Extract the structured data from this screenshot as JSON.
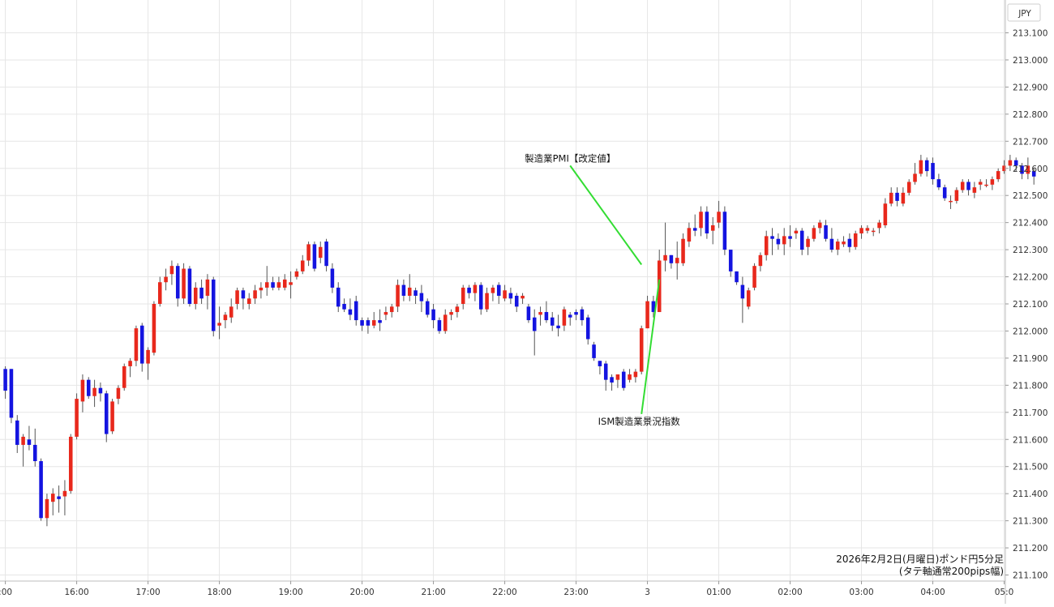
{
  "chart_data": {
    "type": "candlestick",
    "currency": "JPY",
    "caption_lines": [
      "2026年2月2日(月曜日)ポンド円5分足",
      "(タテ軸通常200pips幅)"
    ],
    "ylim": [
      211.1,
      213.1
    ],
    "y_ticks": [
      "213.100",
      "213.000",
      "212.900",
      "212.800",
      "212.700",
      "212.600",
      "212.500",
      "212.400",
      "212.300",
      "212.200",
      "212.100",
      "212.000",
      "211.900",
      "211.800",
      "211.700",
      "211.600",
      "211.500",
      "211.400",
      "211.300",
      "211.200",
      "211.100"
    ],
    "x_ticks": [
      {
        "label": ":00",
        "t": 0
      },
      {
        "label": "16:00",
        "t": 12
      },
      {
        "label": "17:00",
        "t": 24
      },
      {
        "label": "18:00",
        "t": 36
      },
      {
        "label": "19:00",
        "t": 48
      },
      {
        "label": "20:00",
        "t": 60
      },
      {
        "label": "21:00",
        "t": 72
      },
      {
        "label": "22:00",
        "t": 84
      },
      {
        "label": "23:00",
        "t": 96
      },
      {
        "label": "3",
        "t": 108
      },
      {
        "label": "01:00",
        "t": 120
      },
      {
        "label": "02:00",
        "t": 132
      },
      {
        "label": "03:00",
        "t": 144
      },
      {
        "label": "04:00",
        "t": 156
      },
      {
        "label": "05:0",
        "t": 168
      }
    ],
    "t_range": [
      -0.9,
      168.2
    ],
    "candles": [
      [
        211.86,
        211.87,
        211.75,
        211.78
      ],
      [
        211.86,
        211.86,
        211.66,
        211.68
      ],
      [
        211.67,
        211.69,
        211.55,
        211.58
      ],
      [
        211.58,
        211.62,
        211.5,
        211.61
      ],
      [
        211.6,
        211.65,
        211.56,
        211.58
      ],
      [
        211.58,
        211.64,
        211.5,
        211.52
      ],
      [
        211.52,
        211.53,
        211.3,
        211.31
      ],
      [
        211.31,
        211.4,
        211.28,
        211.38
      ],
      [
        211.37,
        211.42,
        211.32,
        211.4
      ],
      [
        211.39,
        211.43,
        211.33,
        211.38
      ],
      [
        211.39,
        211.45,
        211.32,
        211.41
      ],
      [
        211.41,
        211.62,
        211.4,
        211.61
      ],
      [
        211.61,
        211.77,
        211.6,
        211.75
      ],
      [
        211.74,
        211.84,
        211.7,
        211.82
      ],
      [
        211.82,
        211.83,
        211.75,
        211.76
      ],
      [
        211.76,
        211.82,
        211.72,
        211.79
      ],
      [
        211.79,
        211.81,
        211.74,
        211.77
      ],
      [
        211.77,
        211.78,
        211.59,
        211.62
      ],
      [
        211.63,
        211.75,
        211.62,
        211.74
      ],
      [
        211.75,
        211.8,
        211.73,
        211.79
      ],
      [
        211.79,
        211.88,
        211.78,
        211.87
      ],
      [
        211.87,
        211.9,
        211.83,
        211.89
      ],
      [
        211.89,
        212.02,
        211.87,
        212.01
      ],
      [
        212.02,
        212.03,
        211.85,
        211.88
      ],
      [
        211.88,
        211.94,
        211.82,
        211.93
      ],
      [
        211.92,
        212.11,
        211.91,
        212.1
      ],
      [
        212.1,
        212.2,
        212.09,
        212.18
      ],
      [
        212.18,
        212.23,
        212.15,
        212.2
      ],
      [
        212.21,
        212.26,
        212.17,
        212.24
      ],
      [
        212.24,
        212.25,
        212.09,
        212.12
      ],
      [
        212.12,
        212.25,
        212.1,
        212.23
      ],
      [
        212.23,
        212.24,
        212.09,
        212.1
      ],
      [
        212.1,
        212.18,
        212.08,
        212.16
      ],
      [
        212.16,
        212.19,
        212.1,
        212.12
      ],
      [
        212.13,
        212.21,
        212.08,
        212.19
      ],
      [
        212.19,
        212.2,
        211.98,
        212.0
      ],
      [
        212.02,
        212.09,
        211.97,
        212.03
      ],
      [
        212.04,
        212.07,
        212.01,
        212.06
      ],
      [
        212.05,
        212.12,
        212.03,
        212.09
      ],
      [
        212.1,
        212.16,
        212.08,
        212.15
      ],
      [
        212.15,
        212.16,
        212.08,
        212.12
      ],
      [
        212.1,
        212.14,
        212.08,
        212.12
      ],
      [
        212.12,
        212.17,
        212.1,
        212.15
      ],
      [
        212.15,
        212.18,
        212.12,
        212.16
      ],
      [
        212.16,
        212.24,
        212.13,
        212.18
      ],
      [
        212.18,
        212.2,
        212.15,
        212.16
      ],
      [
        212.16,
        212.2,
        212.15,
        212.18
      ],
      [
        212.16,
        212.21,
        212.15,
        212.19
      ],
      [
        212.17,
        212.22,
        212.12,
        212.18
      ],
      [
        212.2,
        212.23,
        212.19,
        212.22
      ],
      [
        212.22,
        212.28,
        212.21,
        212.26
      ],
      [
        212.26,
        212.33,
        212.24,
        212.32
      ],
      [
        212.32,
        212.33,
        212.22,
        212.23
      ],
      [
        212.27,
        212.33,
        212.25,
        212.31
      ],
      [
        212.33,
        212.34,
        212.22,
        212.24
      ],
      [
        212.23,
        212.25,
        212.14,
        212.16
      ],
      [
        212.16,
        212.18,
        212.07,
        212.09
      ],
      [
        212.1,
        212.12,
        212.07,
        212.08
      ],
      [
        212.08,
        212.12,
        212.04,
        212.06
      ],
      [
        212.11,
        212.13,
        212.02,
        212.04
      ],
      [
        212.04,
        212.05,
        212.0,
        212.02
      ],
      [
        212.04,
        212.05,
        211.99,
        212.02
      ],
      [
        212.02,
        212.07,
        212.01,
        212.04
      ],
      [
        212.04,
        212.08,
        212.0,
        212.03
      ],
      [
        212.06,
        212.09,
        212.04,
        212.07
      ],
      [
        212.07,
        212.1,
        212.05,
        212.09
      ],
      [
        212.09,
        212.19,
        212.07,
        212.17
      ],
      [
        212.17,
        212.19,
        212.11,
        212.13
      ],
      [
        212.13,
        212.21,
        212.11,
        212.16
      ],
      [
        212.15,
        212.16,
        212.1,
        212.13
      ],
      [
        212.14,
        212.17,
        212.07,
        212.11
      ],
      [
        212.11,
        212.12,
        212.05,
        212.06
      ],
      [
        212.08,
        212.1,
        212.01,
        212.04
      ],
      [
        212.04,
        212.05,
        211.99,
        212.0
      ],
      [
        212.0,
        212.08,
        211.99,
        212.06
      ],
      [
        212.06,
        212.08,
        212.04,
        212.07
      ],
      [
        212.07,
        212.1,
        212.05,
        212.09
      ],
      [
        212.1,
        212.17,
        212.08,
        212.16
      ],
      [
        212.16,
        212.17,
        212.12,
        212.14
      ],
      [
        212.14,
        212.18,
        212.11,
        212.17
      ],
      [
        212.17,
        212.18,
        212.06,
        212.08
      ],
      [
        212.08,
        212.16,
        212.07,
        212.14
      ],
      [
        212.14,
        212.17,
        212.11,
        212.16
      ],
      [
        212.17,
        212.18,
        212.1,
        212.13
      ],
      [
        212.12,
        212.17,
        212.11,
        212.15
      ],
      [
        212.14,
        212.16,
        212.1,
        212.12
      ],
      [
        212.13,
        212.14,
        212.07,
        212.09
      ],
      [
        212.12,
        212.14,
        212.1,
        212.13
      ],
      [
        212.09,
        212.1,
        212.03,
        212.04
      ],
      [
        212.05,
        212.08,
        211.91,
        212.0
      ],
      [
        212.06,
        212.09,
        212.02,
        212.07
      ],
      [
        212.07,
        212.11,
        212.03,
        212.04
      ],
      [
        212.05,
        212.07,
        212.0,
        212.02
      ],
      [
        212.02,
        212.06,
        211.98,
        212.01
      ],
      [
        212.02,
        212.09,
        212.0,
        212.08
      ],
      [
        212.06,
        212.07,
        212.02,
        212.05
      ],
      [
        212.07,
        212.08,
        212.04,
        212.06
      ],
      [
        212.08,
        212.09,
        212.02,
        212.04
      ],
      [
        212.05,
        212.06,
        211.95,
        211.97
      ],
      [
        211.95,
        211.96,
        211.89,
        211.9
      ],
      [
        211.89,
        211.89,
        211.84,
        211.87
      ],
      [
        211.88,
        211.89,
        211.78,
        211.82
      ],
      [
        211.83,
        211.84,
        211.78,
        211.81
      ],
      [
        211.82,
        211.84,
        211.79,
        211.84
      ],
      [
        211.85,
        211.86,
        211.78,
        211.79
      ],
      [
        211.82,
        211.86,
        211.81,
        211.84
      ],
      [
        211.83,
        211.86,
        211.81,
        211.85
      ],
      [
        211.85,
        212.02,
        211.84,
        212.01
      ],
      [
        212.01,
        212.13,
        212.01,
        212.11
      ],
      [
        212.11,
        212.13,
        212.05,
        212.07
      ],
      [
        212.07,
        212.3,
        212.07,
        212.26
      ],
      [
        212.26,
        212.4,
        212.22,
        212.28
      ],
      [
        212.28,
        212.28,
        212.23,
        212.25
      ],
      [
        212.25,
        212.33,
        212.19,
        212.27
      ],
      [
        212.25,
        212.36,
        212.24,
        212.34
      ],
      [
        212.33,
        212.4,
        212.31,
        212.38
      ],
      [
        212.38,
        212.43,
        212.35,
        212.37
      ],
      [
        212.38,
        212.46,
        212.35,
        212.44
      ],
      [
        212.44,
        212.46,
        212.34,
        212.36
      ],
      [
        212.37,
        212.42,
        212.32,
        212.39
      ],
      [
        212.4,
        212.48,
        212.38,
        212.44
      ],
      [
        212.44,
        212.46,
        212.28,
        212.3
      ],
      [
        212.3,
        212.3,
        212.2,
        212.22
      ],
      [
        212.22,
        212.22,
        212.17,
        212.18
      ],
      [
        212.17,
        212.2,
        212.03,
        212.12
      ],
      [
        212.09,
        212.16,
        212.08,
        212.15
      ],
      [
        212.16,
        212.25,
        212.15,
        212.24
      ],
      [
        212.24,
        212.29,
        212.22,
        212.28
      ],
      [
        212.28,
        212.37,
        212.26,
        212.35
      ],
      [
        212.35,
        212.38,
        212.28,
        212.34
      ],
      [
        212.34,
        212.36,
        212.3,
        212.32
      ],
      [
        212.32,
        212.38,
        212.28,
        212.35
      ],
      [
        212.35,
        212.39,
        212.31,
        212.34
      ],
      [
        212.36,
        212.38,
        212.34,
        212.37
      ],
      [
        212.37,
        212.38,
        212.28,
        212.3
      ],
      [
        212.31,
        212.35,
        212.28,
        212.34
      ],
      [
        212.34,
        212.39,
        212.33,
        212.38
      ],
      [
        212.38,
        212.41,
        212.36,
        212.4
      ],
      [
        212.39,
        212.41,
        212.33,
        212.34
      ],
      [
        212.34,
        212.38,
        212.29,
        212.3
      ],
      [
        212.3,
        212.34,
        212.28,
        212.33
      ],
      [
        212.32,
        212.35,
        212.31,
        212.33
      ],
      [
        212.34,
        212.36,
        212.29,
        212.31
      ],
      [
        212.31,
        212.37,
        212.3,
        212.36
      ],
      [
        212.36,
        212.39,
        212.34,
        212.38
      ],
      [
        212.37,
        212.39,
        212.36,
        212.38
      ],
      [
        212.37,
        212.38,
        212.35,
        212.37
      ],
      [
        212.38,
        212.41,
        212.36,
        212.4
      ],
      [
        212.39,
        212.49,
        212.38,
        212.47
      ],
      [
        212.47,
        212.53,
        212.46,
        212.51
      ],
      [
        212.51,
        212.53,
        212.46,
        212.48
      ],
      [
        212.47,
        212.53,
        212.46,
        212.51
      ],
      [
        212.51,
        212.56,
        212.5,
        212.55
      ],
      [
        212.55,
        212.62,
        212.54,
        212.58
      ],
      [
        212.58,
        212.65,
        212.57,
        212.63
      ],
      [
        212.63,
        212.64,
        212.57,
        212.59
      ],
      [
        212.62,
        212.64,
        212.54,
        212.56
      ],
      [
        212.56,
        212.58,
        212.52,
        212.53
      ],
      [
        212.53,
        212.54,
        212.48,
        212.49
      ],
      [
        212.48,
        212.5,
        212.45,
        212.48
      ],
      [
        212.48,
        212.53,
        212.47,
        212.52
      ],
      [
        212.52,
        212.56,
        212.51,
        212.55
      ],
      [
        212.55,
        212.56,
        212.5,
        212.52
      ],
      [
        212.51,
        212.55,
        212.49,
        212.53
      ],
      [
        212.54,
        212.56,
        212.52,
        212.55
      ],
      [
        212.54,
        212.56,
        212.53,
        212.54
      ],
      [
        212.54,
        212.57,
        212.52,
        212.56
      ],
      [
        212.56,
        212.6,
        212.55,
        212.59
      ],
      [
        212.59,
        212.63,
        212.58,
        212.61
      ],
      [
        212.61,
        212.65,
        212.59,
        212.63
      ],
      [
        212.63,
        212.64,
        212.59,
        212.61
      ],
      [
        212.61,
        212.62,
        212.56,
        212.58
      ],
      [
        212.58,
        212.64,
        212.56,
        212.61
      ],
      [
        212.59,
        212.6,
        212.54,
        212.57
      ]
    ],
    "annotations": [
      {
        "label": "製造業PMI【改定値】",
        "candle": 107,
        "price": 212.245,
        "label_price": 212.64
      },
      {
        "label": "ISM製造業景況指数",
        "candle": 110,
        "price": 212.19,
        "label_price": 211.67
      }
    ],
    "colors": {
      "up": "#e8281c",
      "down": "#1414e0",
      "wick": "#555555",
      "grid": "#e6e6e6",
      "annotation_line": "#33dd33",
      "axis_text": "#333333"
    }
  }
}
